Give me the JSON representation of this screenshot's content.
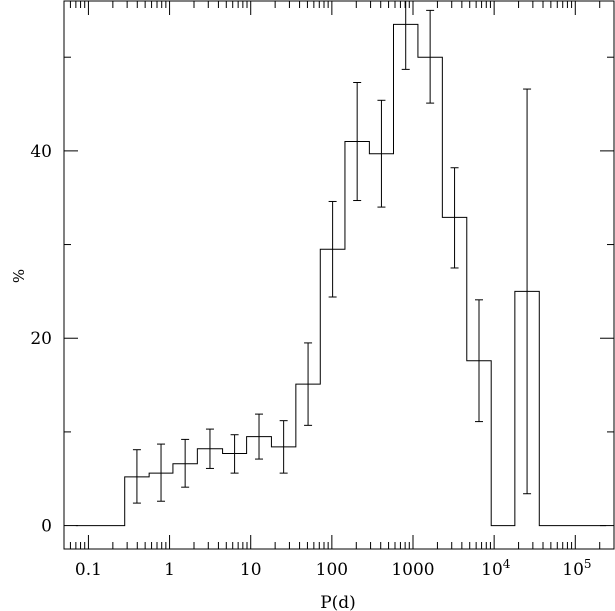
{
  "chart_data": {
    "type": "histogram",
    "xscale": "log10",
    "xlabel": "P(d)",
    "ylabel": "%",
    "xlim": [
      0.05,
      300000
    ],
    "ylim": [
      -2.5,
      56
    ],
    "x_ticks": [
      {
        "value": 0.1,
        "label": "0.1",
        "exp": ""
      },
      {
        "value": 1,
        "label": "1",
        "exp": ""
      },
      {
        "value": 10,
        "label": "10",
        "exp": ""
      },
      {
        "value": 100,
        "label": "100",
        "exp": ""
      },
      {
        "value": 1000,
        "label": "1000",
        "exp": ""
      },
      {
        "value": 10000,
        "label": "10",
        "exp": "4"
      },
      {
        "value": 100000,
        "label": "10",
        "exp": "5"
      }
    ],
    "y_ticks": [
      {
        "value": 0,
        "label": "0"
      },
      {
        "value": 20,
        "label": "20"
      },
      {
        "value": 40,
        "label": "40"
      }
    ],
    "y_minor_ticks": [
      10,
      30,
      50
    ],
    "bins": [
      {
        "left": 0.07,
        "right": 0.28,
        "value": 0
      },
      {
        "left": 0.28,
        "right": 0.56,
        "value": 5.2,
        "err": [
          2.4,
          8.1
        ]
      },
      {
        "left": 0.56,
        "right": 1.1,
        "value": 5.6,
        "err": [
          2.6,
          8.7
        ]
      },
      {
        "left": 1.1,
        "right": 2.2,
        "value": 6.6,
        "err": [
          4.1,
          9.2
        ]
      },
      {
        "left": 2.2,
        "right": 4.5,
        "value": 8.2,
        "err": [
          6.1,
          10.3
        ]
      },
      {
        "left": 4.5,
        "right": 8.9,
        "value": 7.7,
        "err": [
          5.6,
          9.7
        ]
      },
      {
        "left": 8.9,
        "right": 18,
        "value": 9.5,
        "err": [
          7.1,
          11.9
        ]
      },
      {
        "left": 18,
        "right": 36,
        "value": 8.4,
        "err": [
          5.6,
          11.2
        ]
      },
      {
        "left": 36,
        "right": 72,
        "value": 15.1,
        "err": [
          10.7,
          19.5
        ]
      },
      {
        "left": 72,
        "right": 145,
        "value": 29.5,
        "err": [
          24.4,
          34.6
        ]
      },
      {
        "left": 145,
        "right": 290,
        "value": 41.0,
        "err": [
          34.7,
          47.3
        ]
      },
      {
        "left": 290,
        "right": 575,
        "value": 39.7,
        "err": [
          34.0,
          45.4
        ]
      },
      {
        "left": 575,
        "right": 1150,
        "value": 53.5,
        "err": [
          48.7,
          58.2
        ]
      },
      {
        "left": 1150,
        "right": 2300,
        "value": 50.0,
        "err": [
          45.1,
          55.0
        ]
      },
      {
        "left": 2300,
        "right": 4600,
        "value": 32.9,
        "err": [
          27.5,
          38.2
        ]
      },
      {
        "left": 4600,
        "right": 9200,
        "value": 17.6,
        "err": [
          11.1,
          24.1
        ]
      },
      {
        "left": 9200,
        "right": 18000,
        "value": 0
      },
      {
        "left": 18000,
        "right": 36000,
        "value": 25.0,
        "err": [
          3.4,
          46.6
        ]
      },
      {
        "left": 36000,
        "right": 240000,
        "value": 0
      }
    ]
  }
}
